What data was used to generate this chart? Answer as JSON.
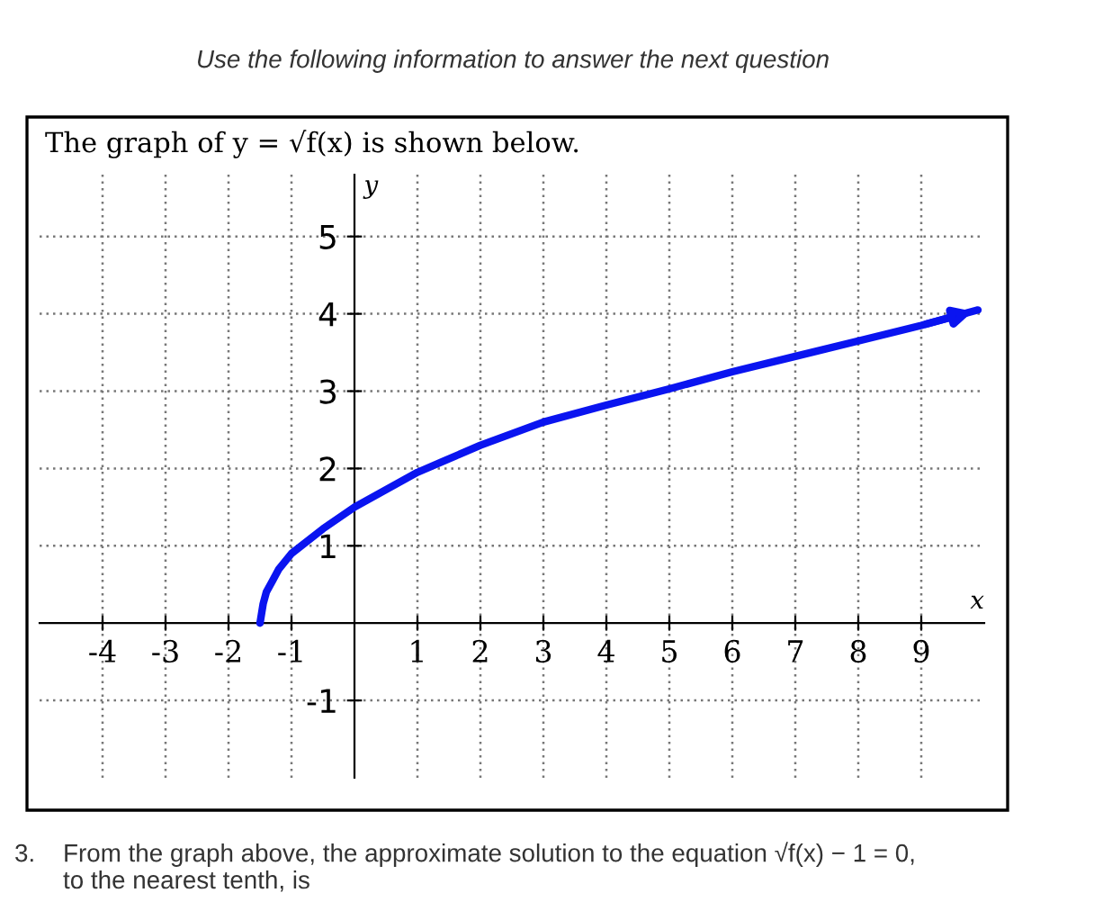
{
  "chart_data": {
    "type": "line",
    "title": "Use the following information to answer the next question",
    "subtitle": "The graph of y = √f(x) is shown below.",
    "xlabel": "x",
    "ylabel": "y",
    "annotations": [
      "3.    From the graph above, the approximate solution to the equation √f(x) − 1 = 0,\n       to the nearest tenth, is"
    ],
    "series": [
      {
        "color": "#0a14f0",
        "x": [
          -1.5,
          -1.45,
          -1.4,
          -1.3,
          -1.2,
          -1.0,
          -0.5,
          0,
          1,
          2,
          3,
          4,
          5,
          6,
          7,
          8,
          9,
          9.9
        ],
        "values": [
          0,
          0.25,
          0.4,
          0.55,
          0.7,
          0.9,
          1.22,
          1.5,
          1.95,
          2.3,
          2.6,
          2.82,
          3.03,
          3.25,
          3.45,
          3.65,
          3.85,
          4.05
        ]
      }
    ],
    "xlim": [
      -5,
      10
    ],
    "ylim": [
      -2,
      5.8
    ],
    "xticks": [
      -4,
      -3,
      -2,
      -1,
      1,
      2,
      3,
      4,
      5,
      6,
      7,
      8,
      9
    ],
    "yticks": [
      -1,
      1,
      2,
      3,
      4,
      5
    ],
    "grid": true,
    "line_style": "solid"
  }
}
